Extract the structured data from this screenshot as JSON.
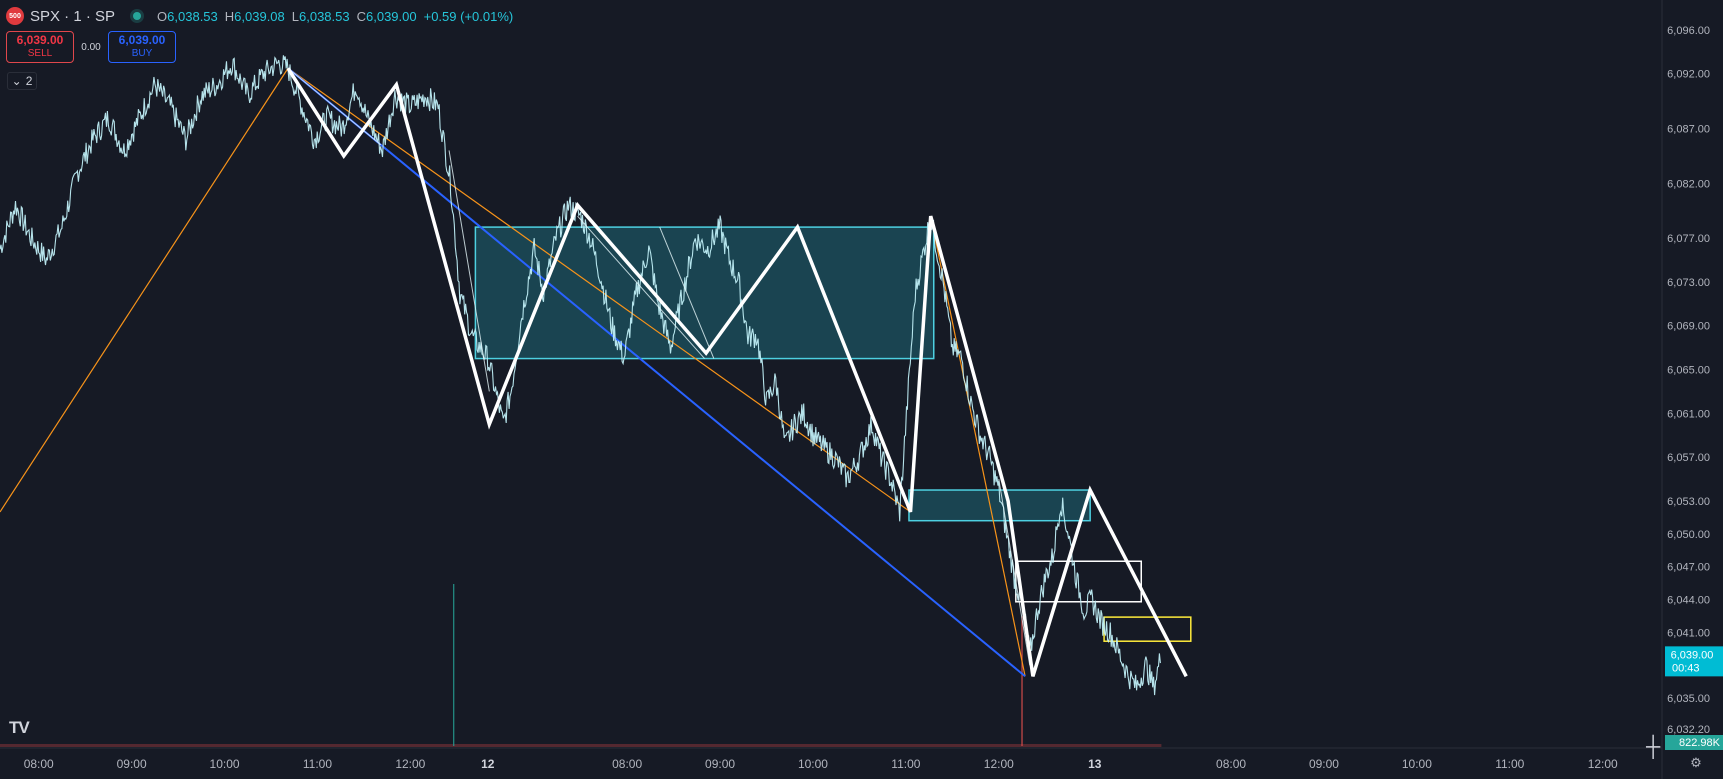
{
  "header": {
    "logo_text": "500",
    "symbol": "SPX · 1 · SP",
    "ohlc": [
      {
        "k": "O",
        "v": "6,038.53"
      },
      {
        "k": "H",
        "v": "6,039.08"
      },
      {
        "k": "L",
        "v": "6,038.53"
      },
      {
        "k": "C",
        "v": "6,039.00"
      },
      {
        "k": "",
        "v": "+0.59 (+0.01%)"
      }
    ]
  },
  "trade": {
    "sell_price": "6,039.00",
    "sell_label": "SELL",
    "spread": "0.00",
    "buy_price": "6,039.00",
    "buy_label": "BUY"
  },
  "collapse": {
    "count": "2"
  },
  "colors": {
    "bg": "#161a25",
    "candle": "#bfeef5",
    "grid": "#1f2330",
    "white_line": "#ffffff",
    "orange": "#f7931a",
    "blue": "#2962ff",
    "box_fill": "rgba(38,166,186,0.30)",
    "box_border": "#4dd0e1",
    "yellow": "#ffeb3b",
    "price_tag": "#00bcd4",
    "axis_text": "#b2b5be"
  },
  "chart_data": {
    "type": "line",
    "symbol": "SPX",
    "price_axis_labels": [
      "6,096.00",
      "6,092.00",
      "6,087.00",
      "6,082.00",
      "6,077.00",
      "6,073.00",
      "6,069.00",
      "6,065.00",
      "6,061.00",
      "6,057.00",
      "6,053.00",
      "6,050.00",
      "6,047.00",
      "6,044.00",
      "6,041.00",
      "6,035.00",
      "6,032.20"
    ],
    "price_range": [
      6031,
      6098
    ],
    "time_labels": [
      {
        "label": "08:00",
        "x": 0
      },
      {
        "label": "09:00",
        "x": 60
      },
      {
        "label": "10:00",
        "x": 120
      },
      {
        "label": "11:00",
        "x": 180
      },
      {
        "label": "12:00",
        "x": 240
      },
      {
        "label": "12",
        "x": 290,
        "bold": true
      },
      {
        "label": "08:00",
        "x": 380
      },
      {
        "label": "09:00",
        "x": 440
      },
      {
        "label": "10:00",
        "x": 500
      },
      {
        "label": "11:00",
        "x": 560
      },
      {
        "label": "12:00",
        "x": 620
      },
      {
        "label": "13",
        "x": 682,
        "bold": true
      },
      {
        "label": "08:00",
        "x": 770
      },
      {
        "label": "09:00",
        "x": 830
      },
      {
        "label": "10:00",
        "x": 890
      },
      {
        "label": "11:00",
        "x": 950
      },
      {
        "label": "12:00",
        "x": 1010
      }
    ],
    "x_range": [
      -25,
      1047
    ],
    "price_path": [
      [
        -25,
        6076
      ],
      [
        -15,
        6080
      ],
      [
        -5,
        6077
      ],
      [
        5,
        6075
      ],
      [
        15,
        6078
      ],
      [
        25,
        6083
      ],
      [
        35,
        6086
      ],
      [
        45,
        6088
      ],
      [
        55,
        6085
      ],
      [
        65,
        6088
      ],
      [
        75,
        6091
      ],
      [
        85,
        6089
      ],
      [
        95,
        6086
      ],
      [
        105,
        6090
      ],
      [
        115,
        6091
      ],
      [
        125,
        6093
      ],
      [
        135,
        6090
      ],
      [
        145,
        6092
      ],
      [
        155,
        6093
      ],
      [
        161,
        6092.5
      ],
      [
        170,
        6089
      ],
      [
        178,
        6086
      ],
      [
        186,
        6088
      ],
      [
        196,
        6087
      ],
      [
        205,
        6091
      ],
      [
        212,
        6088
      ],
      [
        222,
        6085
      ],
      [
        230,
        6090
      ],
      [
        240,
        6089
      ],
      [
        250,
        6090
      ],
      [
        258,
        6089
      ],
      [
        266,
        6082
      ],
      [
        272,
        6072
      ],
      [
        280,
        6068
      ],
      [
        290,
        6066
      ],
      [
        300,
        6060
      ],
      [
        305,
        6063
      ],
      [
        312,
        6070
      ],
      [
        320,
        6076
      ],
      [
        326,
        6072
      ],
      [
        334,
        6077
      ],
      [
        342,
        6080
      ],
      [
        350,
        6079
      ],
      [
        356,
        6077
      ],
      [
        362,
        6074
      ],
      [
        370,
        6069
      ],
      [
        378,
        6066
      ],
      [
        386,
        6072
      ],
      [
        394,
        6076
      ],
      [
        400,
        6071
      ],
      [
        408,
        6067
      ],
      [
        416,
        6072
      ],
      [
        424,
        6077
      ],
      [
        432,
        6076
      ],
      [
        440,
        6078
      ],
      [
        446,
        6075
      ],
      [
        452,
        6073
      ],
      [
        458,
        6068
      ],
      [
        464,
        6068
      ],
      [
        470,
        6062
      ],
      [
        476,
        6064
      ],
      [
        482,
        6058
      ],
      [
        488,
        6060
      ],
      [
        494,
        6061
      ],
      [
        500,
        6059
      ],
      [
        506,
        6058
      ],
      [
        514,
        6057
      ],
      [
        522,
        6055
      ],
      [
        530,
        6057
      ],
      [
        538,
        6060
      ],
      [
        544,
        6057
      ],
      [
        550,
        6055
      ],
      [
        556,
        6052
      ],
      [
        566,
        6072
      ],
      [
        576,
        6079
      ],
      [
        584,
        6073
      ],
      [
        590,
        6067
      ],
      [
        596,
        6066
      ],
      [
        602,
        6062
      ],
      [
        608,
        6059
      ],
      [
        614,
        6057
      ],
      [
        620,
        6054
      ],
      [
        625,
        6050
      ],
      [
        630,
        6046
      ],
      [
        636,
        6043
      ],
      [
        640,
        6039
      ],
      [
        645,
        6043
      ],
      [
        650,
        6046
      ],
      [
        655,
        6048
      ],
      [
        660,
        6053
      ],
      [
        665,
        6050
      ],
      [
        670,
        6046
      ],
      [
        675,
        6043
      ],
      [
        680,
        6044
      ],
      [
        686,
        6042
      ],
      [
        692,
        6041
      ],
      [
        698,
        6039
      ],
      [
        704,
        6037
      ],
      [
        709,
        6036
      ],
      [
        715,
        6038
      ],
      [
        720,
        6036
      ],
      [
        725,
        6039
      ]
    ],
    "volume_spikes": [
      {
        "x": 268,
        "h": 0.9
      },
      {
        "x": 635,
        "h": 0.72
      }
    ],
    "white_zigzag": [
      [
        161,
        6092.5
      ],
      [
        197,
        6084.5
      ],
      [
        231,
        6091
      ],
      [
        291,
        6060
      ],
      [
        348,
        6080
      ],
      [
        431,
        6066.5
      ],
      [
        490,
        6078
      ],
      [
        563,
        6052
      ],
      [
        576,
        6079
      ],
      [
        626,
        6053
      ],
      [
        642,
        6037
      ],
      [
        679,
        6054
      ],
      [
        741,
        6037
      ]
    ],
    "orange_lines": [
      [
        [
          -25,
          6052
        ],
        [
          161,
          6092.5
        ]
      ],
      [
        [
          161,
          6092.5
        ],
        [
          563,
          6052
        ]
      ],
      [
        [
          563,
          6052
        ],
        [
          576,
          6079
        ]
      ],
      [
        [
          576,
          6079
        ],
        [
          637,
          6037
        ]
      ]
    ],
    "blue_line": [
      [
        161,
        6092.5
      ],
      [
        637,
        6037
      ]
    ],
    "thin_lines": [
      [
        [
          161,
          6092.5
        ],
        [
          221,
          6085.5
        ]
      ],
      [
        [
          265,
          6085
        ],
        [
          291,
          6063
        ]
      ],
      [
        [
          348,
          6079
        ],
        [
          430,
          6066
        ]
      ],
      [
        [
          401,
          6078
        ],
        [
          436,
          6066
        ]
      ],
      [
        [
          620,
          6055
        ],
        [
          640,
          6038
        ]
      ]
    ],
    "zones": [
      {
        "x0": 282,
        "x1": 578,
        "p0": 6078,
        "p1": 6066,
        "style": "teal"
      },
      {
        "x0": 562,
        "x1": 679,
        "p0": 6054,
        "p1": 6051.2,
        "style": "teal"
      },
      {
        "x0": 631,
        "x1": 712,
        "p0": 6047.5,
        "p1": 6043.8,
        "style": "white"
      },
      {
        "x0": 688,
        "x1": 744,
        "p0": 6042.4,
        "p1": 6040.2,
        "style": "yellow"
      }
    ],
    "last_price": "6,039.00",
    "countdown": "00:43",
    "volume_label": "822.98K"
  }
}
